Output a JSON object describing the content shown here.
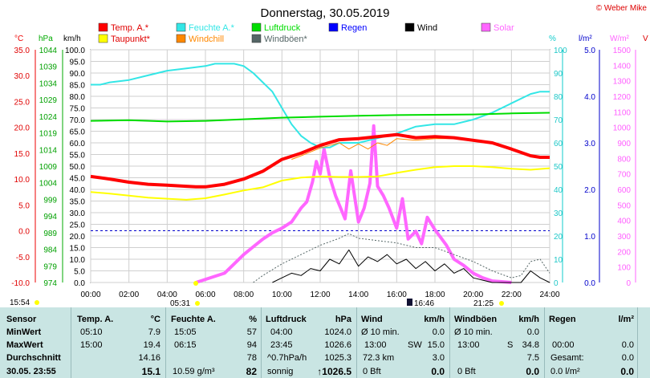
{
  "app": {
    "title": "Donnerstag, 30.05.2019",
    "brand": "© Weber Mike"
  },
  "legend": [
    {
      "label": "Temp. A.*",
      "color": "#ff0000"
    },
    {
      "label": "Feuchte A.*",
      "color": "#33e6e6"
    },
    {
      "label": "Luftdruck",
      "color": "#00dd00"
    },
    {
      "label": "Regen",
      "color": "#0000ff"
    },
    {
      "label": "Wind",
      "color": "#000000"
    },
    {
      "label": "Solar",
      "color": "#ff66ff"
    },
    {
      "label": "Taupunkt*",
      "color": "#ffff00"
    },
    {
      "label": "Windchill",
      "color": "#ff8800"
    },
    {
      "label": "Windböen*",
      "color": "#556666"
    }
  ],
  "axis_units": {
    "temp": "°C",
    "press": "hPa",
    "wind": "km/h",
    "hum": "%",
    "rain": "l/m²",
    "solar": "W/m²",
    "right_clip": "V"
  },
  "markers": {
    "sunrise": "05:31",
    "sunset": "21:25",
    "moonrise": "15:54",
    "moon": "16:46"
  },
  "chart_data": {
    "type": "line",
    "x_ticks": [
      "00:00",
      "02:00",
      "04:00",
      "06:00",
      "08:00",
      "10:00",
      "12:00",
      "14:00",
      "16:00",
      "18:00",
      "20:00",
      "22:00",
      "24:00"
    ],
    "xlim": [
      0,
      24
    ],
    "axes": {
      "temp": {
        "ylim": [
          -10,
          35
        ],
        "ticks": [
          "35.0",
          "30.0",
          "25.0",
          "20.0",
          "15.0",
          "10.0",
          "5.0",
          "0.0",
          "-5.0",
          "-10.0"
        ]
      },
      "press": {
        "ylim": [
          974,
          1046
        ],
        "ticks": [
          "1044",
          "1039",
          "1034",
          "1029",
          "1024",
          "1019",
          "1014",
          "1009",
          "1004",
          "999",
          "994",
          "989",
          "984",
          "979",
          "974"
        ]
      },
      "wind": {
        "ylim": [
          0,
          100
        ],
        "ticks": [
          "100.0",
          "95.0",
          "90.0",
          "85.0",
          "80.0",
          "75.0",
          "70.0",
          "65.0",
          "60.0",
          "55.0",
          "50.0",
          "45.0",
          "40.0",
          "35.0",
          "30.0",
          "25.0",
          "20.0",
          "15.0",
          "10.0",
          "5.0",
          "0.0"
        ]
      },
      "hum": {
        "ylim": [
          0,
          100
        ],
        "ticks": [
          "100",
          "90",
          "80",
          "70",
          "60",
          "50",
          "40",
          "30",
          "20",
          "10",
          "0"
        ]
      },
      "rain": {
        "ylim": [
          0,
          5
        ],
        "ticks": [
          "5.0",
          "4.0",
          "3.0",
          "2.0",
          "1.0",
          "0.0"
        ]
      },
      "solar": {
        "ylim": [
          0,
          1500
        ],
        "ticks": [
          "1500",
          "1400",
          "1300",
          "1200",
          "1100",
          "1000",
          "900",
          "800",
          "700",
          "600",
          "500",
          "400",
          "300",
          "200",
          "100",
          "0"
        ]
      }
    },
    "series": [
      {
        "name": "Temp. A.*",
        "axis": "temp",
        "x": [
          0,
          1,
          2,
          3,
          4,
          5,
          5.5,
          6,
          7,
          8,
          9,
          10,
          11,
          12,
          13,
          14,
          15,
          16,
          17,
          18,
          19,
          20,
          21,
          22,
          23,
          23.5,
          24
        ],
        "y": [
          10.5,
          10.0,
          9.4,
          9.0,
          8.8,
          8.6,
          8.5,
          8.5,
          9.0,
          10.0,
          11.5,
          13.8,
          15.0,
          16.5,
          17.6,
          17.8,
          18.2,
          18.6,
          18.0,
          18.2,
          18.0,
          17.5,
          17.0,
          15.8,
          14.5,
          14.2,
          14.2
        ]
      },
      {
        "name": "Taupunkt*",
        "axis": "temp",
        "x": [
          0,
          1,
          2,
          3,
          4,
          5,
          6,
          7,
          8,
          9,
          10,
          11,
          12,
          13,
          14,
          15,
          16,
          17,
          18,
          19,
          20,
          21,
          22,
          23,
          24
        ],
        "y": [
          7.5,
          7.2,
          6.8,
          6.4,
          6.2,
          6.0,
          6.3,
          7.0,
          7.8,
          8.4,
          9.7,
          10.3,
          10.5,
          10.4,
          10.4,
          10.5,
          11.2,
          11.8,
          12.3,
          12.5,
          12.5,
          12.3,
          12.0,
          11.8,
          12.1
        ]
      },
      {
        "name": "Windchill",
        "axis": "temp",
        "x": [
          10.5,
          11,
          12,
          12.5,
          13,
          13.5,
          14,
          14.5,
          15,
          15.5,
          16,
          17,
          18,
          19
        ],
        "y": [
          13.8,
          14.5,
          16.0,
          16.5,
          17.0,
          15.8,
          16.8,
          15.8,
          17.0,
          16.5,
          17.8,
          17.5,
          17.8,
          17.8
        ]
      },
      {
        "name": "Luftdruck",
        "axis": "press",
        "x": [
          0,
          2,
          4,
          6,
          8,
          10,
          12,
          14,
          16,
          18,
          20,
          22,
          24
        ],
        "y": [
          1024.0,
          1024.2,
          1023.8,
          1024.0,
          1024.5,
          1025.0,
          1025.3,
          1025.6,
          1025.8,
          1025.9,
          1026.0,
          1026.3,
          1026.5
        ]
      },
      {
        "name": "Feuchte A.*",
        "axis": "hum",
        "x": [
          0,
          0.5,
          1,
          2,
          3,
          3.5,
          4,
          5,
          6,
          6.5,
          7,
          7.5,
          8,
          8.5,
          9,
          9.5,
          10,
          10.5,
          11,
          11.5,
          12,
          12.5,
          13,
          14,
          15,
          16,
          17,
          18,
          19,
          20,
          21,
          22,
          23,
          23.5,
          24
        ],
        "y": [
          85,
          85,
          86,
          87,
          89,
          90,
          91,
          92,
          93,
          94,
          94,
          94,
          93,
          90,
          86,
          82,
          75,
          68,
          63,
          60,
          58,
          58,
          60,
          60,
          62,
          64,
          67,
          68,
          68,
          70,
          73,
          77,
          81,
          82,
          82
        ]
      },
      {
        "name": "Wind",
        "axis": "wind",
        "x": [
          9.5,
          10,
          10.5,
          11,
          11.5,
          12,
          12.5,
          13,
          13.5,
          14,
          14.5,
          15,
          15.5,
          16,
          16.5,
          17,
          17.5,
          18,
          18.5,
          19,
          19.5,
          20,
          20.5,
          21,
          21.5,
          22,
          22.5,
          23,
          23.5,
          24
        ],
        "y": [
          0,
          2,
          4,
          3,
          6,
          5,
          10,
          8,
          14,
          7,
          11,
          9,
          12,
          8,
          10,
          6,
          9,
          5,
          8,
          4,
          6,
          2,
          1,
          0,
          0,
          0,
          0,
          5,
          2,
          0
        ]
      },
      {
        "name": "Windböen*",
        "axis": "wind",
        "x": [
          8.5,
          9,
          10,
          11,
          12,
          13,
          13.5,
          14,
          15,
          16,
          17,
          18,
          19,
          20,
          21,
          22,
          22.5,
          23,
          23.5,
          24
        ],
        "y": [
          0,
          3,
          8,
          12,
          16,
          19,
          21,
          19,
          18,
          17,
          15,
          15,
          12,
          9,
          5,
          2,
          3,
          9,
          10,
          4
        ]
      },
      {
        "name": "Solar",
        "axis": "solar",
        "x": [
          5.5,
          6,
          7,
          7.5,
          8,
          8.5,
          9,
          9.5,
          10,
          10.5,
          11,
          11.3,
          11.6,
          11.8,
          12,
          12.2,
          12.5,
          12.8,
          13,
          13.3,
          13.6,
          14,
          14.3,
          14.6,
          14.8,
          15,
          15.3,
          15.6,
          16,
          16.3,
          16.6,
          17,
          17.3,
          17.6,
          18,
          18.3,
          18.6,
          19,
          19.5,
          20,
          20.5,
          21,
          21.5,
          22
        ],
        "y": [
          0,
          20,
          60,
          120,
          180,
          230,
          280,
          320,
          350,
          390,
          480,
          520,
          650,
          780,
          700,
          860,
          680,
          560,
          500,
          410,
          720,
          390,
          480,
          640,
          1010,
          620,
          560,
          480,
          350,
          540,
          280,
          330,
          250,
          420,
          340,
          290,
          240,
          150,
          110,
          60,
          30,
          10,
          5,
          0
        ]
      }
    ]
  },
  "table": {
    "headers": {
      "sensor": "Sensor",
      "temp": "Temp. A.",
      "temp_unit": "°C",
      "hum": "Feuchte A.",
      "hum_unit": "%",
      "press": "Luftdruck",
      "press_unit": "hPa",
      "wind": "Wind",
      "wind_unit": "km/h",
      "gust": "Windböen",
      "gust_unit": "km/h",
      "rain": "Regen",
      "rain_unit": "l/m²"
    },
    "rows": {
      "min": {
        "label": "MinWert",
        "temp_t": "05:10",
        "temp_v": "7.9",
        "hum_t": "15:05",
        "hum_v": "57",
        "press_t": "04:00",
        "press_v": "1024.0",
        "wind_t": "Ø 10 min.",
        "wind_v": "0.0",
        "gust_t": "Ø 10 min.",
        "gust_v": "0.0",
        "rain_t": "",
        "rain_v": ""
      },
      "max": {
        "label": "MaxWert",
        "temp_t": "15:00",
        "temp_v": "19.4",
        "hum_t": "06:15",
        "hum_v": "94",
        "press_t": "23:45",
        "press_v": "1026.6",
        "wind_t": "13:00",
        "wind_d": "SW",
        "wind_v": "15.0",
        "gust_t": "13:00",
        "gust_d": "S",
        "gust_v": "34.8",
        "rain_t": "00:00",
        "rain_v": "0.0"
      },
      "avg": {
        "label": "Durchschnitt",
        "temp_v": "14.16",
        "hum_v": "78",
        "press_t": "^0.7hPa/h",
        "press_v": "1025.3",
        "wind_t": "72.3 km",
        "wind_v": "3.0",
        "gust_v": "7.5",
        "rain_t": "Gesamt:",
        "rain_v": "0.0"
      },
      "now": {
        "label": "30.05. 23:55",
        "temp_v": "15.1",
        "hum_t": "10.59 g/m³",
        "hum_v": "82",
        "press_t": "sonnig",
        "press_v": "↑1026.5",
        "wind_t": "0 Bft",
        "wind_v": "0.0",
        "gust_t": "0 Bft",
        "gust_v": "0.0",
        "rain_t": "0.0 l/m²",
        "rain_v": "0.0"
      }
    }
  }
}
